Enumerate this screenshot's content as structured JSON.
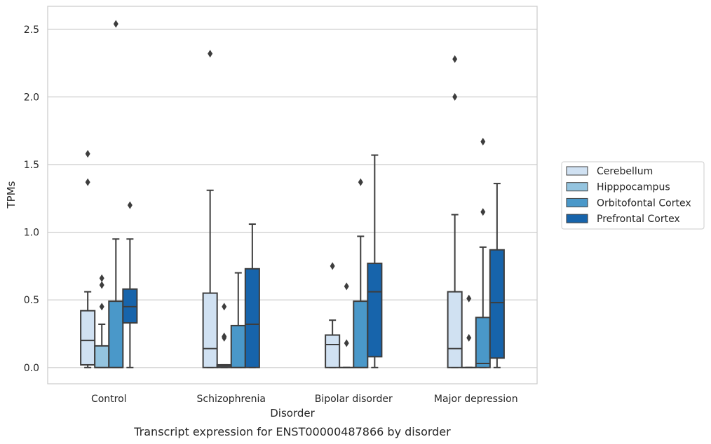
{
  "chart_data": {
    "type": "box",
    "title": "Transcript expression for ENST00000487866 by disorder",
    "xlabel": "Disorder",
    "ylabel": "TPMs",
    "ylim": [
      -0.12,
      2.67
    ],
    "yticks": [
      "0.0",
      "0.5",
      "1.0",
      "1.5",
      "2.0",
      "2.5"
    ],
    "grid": true,
    "legend_position": "right",
    "categories": [
      "Control",
      "Schizophrenia",
      "Bipolar disorder",
      "Major depression"
    ],
    "series": [
      {
        "name": "Cerebellum",
        "color": "#d0e1f2",
        "boxes": [
          {
            "whislo": 0.0,
            "q1": 0.02,
            "med": 0.2,
            "q3": 0.42,
            "whishi": 0.56,
            "fliers": [
              1.37,
              1.58
            ]
          },
          {
            "whislo": 0.0,
            "q1": 0.0,
            "med": 0.14,
            "q3": 0.55,
            "whishi": 1.31,
            "fliers": [
              2.32
            ]
          },
          {
            "whislo": 0.0,
            "q1": 0.0,
            "med": 0.17,
            "q3": 0.24,
            "whishi": 0.35,
            "fliers": [
              0.75
            ]
          },
          {
            "whislo": 0.0,
            "q1": 0.0,
            "med": 0.14,
            "q3": 0.56,
            "whishi": 1.13,
            "fliers": [
              2.0,
              2.28
            ]
          }
        ]
      },
      {
        "name": "Hipppocampus",
        "color": "#94c4df",
        "boxes": [
          {
            "whislo": 0.0,
            "q1": 0.0,
            "med": 0.0,
            "q3": 0.16,
            "whishi": 0.32,
            "fliers": [
              0.45,
              0.61,
              0.66
            ]
          },
          {
            "whislo": 0.0,
            "q1": 0.0,
            "med": 0.01,
            "q3": 0.02,
            "whishi": 0.02,
            "fliers": [
              0.22,
              0.23,
              0.45
            ]
          },
          {
            "whislo": 0.0,
            "q1": 0.0,
            "med": 0.0,
            "q3": 0.0,
            "whishi": 0.0,
            "fliers": [
              0.18,
              0.6
            ]
          },
          {
            "whislo": 0.0,
            "q1": 0.0,
            "med": 0.0,
            "q3": 0.0,
            "whishi": 0.0,
            "fliers": [
              0.22,
              0.51
            ]
          }
        ]
      },
      {
        "name": "Orbitofontal Cortex",
        "color": "#4a98c9",
        "boxes": [
          {
            "whislo": 0.0,
            "q1": 0.0,
            "med": 0.0,
            "q3": 0.49,
            "whishi": 0.95,
            "fliers": [
              2.54
            ]
          },
          {
            "whislo": 0.0,
            "q1": 0.0,
            "med": 0.0,
            "q3": 0.31,
            "whishi": 0.7,
            "fliers": []
          },
          {
            "whislo": 0.0,
            "q1": 0.0,
            "med": 0.0,
            "q3": 0.49,
            "whishi": 0.97,
            "fliers": [
              1.37
            ]
          },
          {
            "whislo": 0.0,
            "q1": 0.0,
            "med": 0.03,
            "q3": 0.37,
            "whishi": 0.89,
            "fliers": [
              1.15,
              1.67
            ]
          }
        ]
      },
      {
        "name": "Prefrontal Cortex",
        "color": "#1764ab",
        "boxes": [
          {
            "whislo": 0.0,
            "q1": 0.33,
            "med": 0.45,
            "q3": 0.58,
            "whishi": 0.95,
            "fliers": [
              1.2
            ]
          },
          {
            "whislo": 0.0,
            "q1": 0.0,
            "med": 0.32,
            "q3": 0.73,
            "whishi": 1.06,
            "fliers": []
          },
          {
            "whislo": 0.0,
            "q1": 0.08,
            "med": 0.56,
            "q3": 0.77,
            "whishi": 1.57,
            "fliers": []
          },
          {
            "whislo": 0.0,
            "q1": 0.07,
            "med": 0.48,
            "q3": 0.87,
            "whishi": 1.36,
            "fliers": []
          }
        ]
      }
    ]
  }
}
